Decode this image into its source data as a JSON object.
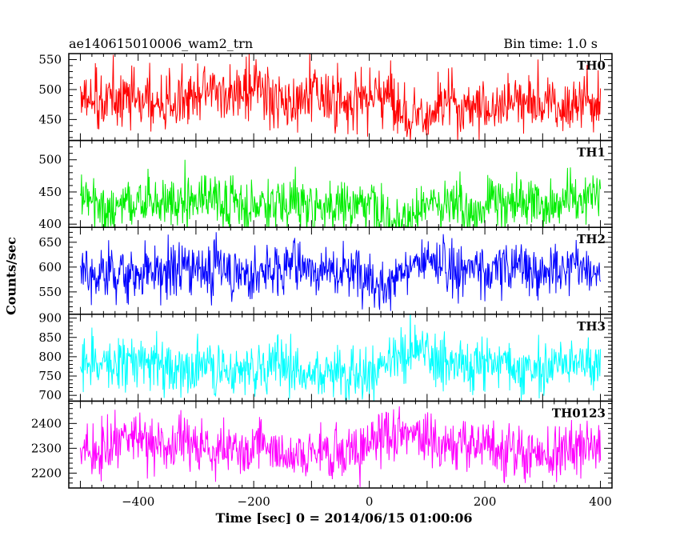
{
  "header": {
    "left_title": "ae140615010006_wam2_trn",
    "right_title": "Bin time: 1.0 s"
  },
  "chart_data": {
    "type": "line",
    "xlabel": "Time [sec] 0 = 2014/06/15 01:00:06",
    "ylabel": "Counts/sec",
    "xlim": [
      -520,
      420
    ],
    "xticks": [
      -400,
      -200,
      0,
      200,
      400
    ],
    "x_data_range": [
      -500,
      400
    ],
    "bin_time_s": 1.0,
    "panels": [
      {
        "name": "TH0",
        "color": "#ff0000",
        "ylim": [
          415,
          560
        ],
        "yticks": [
          450,
          500,
          550
        ],
        "mean": 480,
        "spread": 28
      },
      {
        "name": "TH1",
        "color": "#00ee00",
        "ylim": [
          395,
          530
        ],
        "yticks": [
          400,
          450,
          500
        ],
        "mean": 440,
        "spread": 24
      },
      {
        "name": "TH2",
        "color": "#0000ff",
        "ylim": [
          505,
          680
        ],
        "yticks": [
          550,
          600,
          650
        ],
        "mean": 605,
        "spread": 32
      },
      {
        "name": "TH3",
        "color": "#00ffff",
        "ylim": [
          685,
          910
        ],
        "yticks": [
          700,
          750,
          800,
          850,
          900
        ],
        "mean": 785,
        "spread": 40
      },
      {
        "name": "TH0123",
        "color": "#ff00ff",
        "ylim": [
          2140,
          2490
        ],
        "yticks": [
          2200,
          2300,
          2400
        ],
        "mean": 2310,
        "spread": 62
      }
    ]
  }
}
